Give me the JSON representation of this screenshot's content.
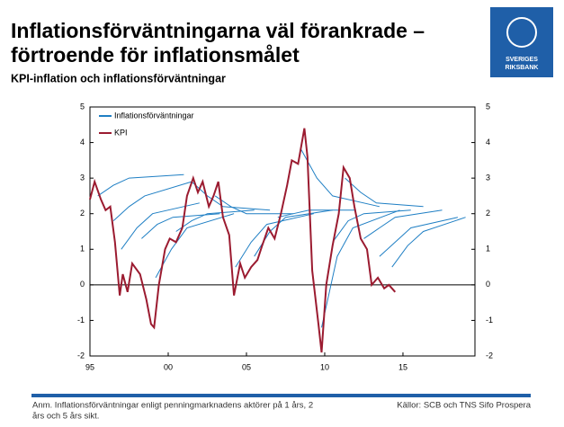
{
  "chart_data": {
    "type": "line",
    "title": "Inflationsförväntningarna väl förankrade –",
    "title_line2": "förtroende för inflationsmålet",
    "subtitle": "KPI-inflation och inflationsförväntningar",
    "logo_text": "SVERIGES RIKSBANK",
    "note": "Anm. Inflationsförväntningar enligt penningmarknadens aktörer på 1 års, 2",
    "note_line2": "års och 5 års sikt.",
    "source": "Källor: SCB och TNS Sifo Prospera",
    "xlim": [
      1995,
      2019.6
    ],
    "xticks": [
      {
        "value": 1995,
        "label": "95"
      },
      {
        "value": 2000,
        "label": "00"
      },
      {
        "value": 2005,
        "label": "05"
      },
      {
        "value": 2010,
        "label": "10"
      },
      {
        "value": 2015,
        "label": "15"
      }
    ],
    "ylim": [
      -2,
      5
    ],
    "yticks": [
      -2,
      -1,
      0,
      1,
      2,
      3,
      4,
      5
    ],
    "y2lim": [
      -2,
      5
    ],
    "y2ticks": [
      -2,
      -1,
      0,
      1,
      2,
      3,
      4,
      5
    ],
    "legend": "upper left",
    "series": [
      {
        "name": "Inflationsförväntningar",
        "color": "#1f7fc4",
        "x": [
          1995.5,
          1996.5,
          1997.5,
          2001.0,
          null,
          1996.5,
          1997.5,
          1998.5,
          2001.5,
          null,
          1997.0,
          1998.0,
          1999.0,
          2002.0,
          null,
          1998.3,
          1999.3,
          2000.3,
          2003.3,
          null,
          1999.2,
          2000.2,
          2001.2,
          2004.2,
          null,
          2000.5,
          2001.5,
          2002.5,
          2005.5,
          null,
          2001.5,
          2002.5,
          2003.5,
          2006.5,
          null,
          2003.0,
          2004.0,
          2005.0,
          2008.0,
          null,
          2004.3,
          2005.3,
          2006.3,
          2009.3,
          null,
          2005.5,
          2006.5,
          2007.5,
          2010.5,
          null,
          2007.0,
          2008.0,
          2009.0,
          2012.0,
          null,
          2008.5,
          2009.5,
          2010.5,
          2013.5,
          null,
          2009.8,
          2010.8,
          2011.8,
          2014.8,
          null,
          2010.5,
          2011.5,
          2012.5,
          2015.5,
          null,
          2011.3,
          2012.3,
          2013.3,
          2016.3,
          null,
          2012.5,
          2013.5,
          2014.5,
          2017.5,
          null,
          2013.5,
          2014.5,
          2015.5,
          2018.5,
          null,
          2014.3,
          2015.3,
          2016.3,
          2019.0
        ],
        "values": [
          2.5,
          2.8,
          3.0,
          3.1,
          null,
          1.8,
          2.2,
          2.5,
          2.9,
          null,
          1.0,
          1.6,
          2.0,
          2.3,
          null,
          1.3,
          1.7,
          1.9,
          2.0,
          null,
          0.2,
          1.0,
          1.6,
          2.0,
          null,
          1.5,
          1.8,
          2.0,
          2.1,
          null,
          2.9,
          2.5,
          2.2,
          2.1,
          null,
          2.5,
          2.2,
          2.0,
          2.0,
          null,
          0.5,
          1.2,
          1.7,
          2.0,
          null,
          0.8,
          1.5,
          1.9,
          2.1,
          null,
          1.9,
          2.0,
          2.1,
          2.1,
          null,
          3.8,
          3.0,
          2.5,
          2.2,
          null,
          -1.2,
          0.8,
          1.6,
          2.1,
          null,
          1.2,
          1.8,
          2.0,
          2.1,
          null,
          3.0,
          2.6,
          2.3,
          2.2,
          null,
          1.3,
          1.6,
          1.9,
          2.1,
          null,
          0.8,
          1.2,
          1.6,
          1.9,
          null,
          0.5,
          1.1,
          1.5,
          1.9
        ]
      },
      {
        "name": "KPI",
        "color": "#9b1b30",
        "x": [
          1995.0,
          1995.3,
          1995.7,
          1996.0,
          1996.3,
          1996.6,
          1996.9,
          1997.1,
          1997.4,
          1997.7,
          1998.2,
          1998.6,
          1998.9,
          1999.1,
          1999.4,
          1999.8,
          2000.1,
          2000.5,
          2000.9,
          2001.2,
          2001.6,
          2001.9,
          2002.2,
          2002.6,
          2002.9,
          2003.2,
          2003.5,
          2003.9,
          2004.2,
          2004.6,
          2004.9,
          2005.3,
          2005.7,
          2006.0,
          2006.4,
          2006.8,
          2007.2,
          2007.6,
          2007.9,
          2008.3,
          2008.7,
          2008.9,
          2009.2,
          2009.6,
          2009.8,
          2010.1,
          2010.5,
          2010.9,
          2011.2,
          2011.6,
          2011.9,
          2012.3,
          2012.7,
          2013.0,
          2013.4,
          2013.8,
          2014.1,
          2014.5
        ],
        "values": [
          2.4,
          2.9,
          2.4,
          2.1,
          2.2,
          1.2,
          -0.3,
          0.3,
          -0.2,
          0.6,
          0.3,
          -0.4,
          -1.1,
          -1.2,
          0.0,
          1.0,
          1.3,
          1.2,
          1.6,
          2.5,
          3.0,
          2.6,
          2.9,
          2.2,
          2.5,
          2.9,
          1.9,
          1.4,
          -0.3,
          0.6,
          0.2,
          0.5,
          0.7,
          1.1,
          1.6,
          1.3,
          2.0,
          2.8,
          3.5,
          3.4,
          4.4,
          3.6,
          0.4,
          -1.1,
          -1.9,
          0.0,
          1.1,
          2.0,
          3.3,
          3.0,
          2.2,
          1.3,
          1.0,
          0.0,
          0.2,
          -0.1,
          0.0,
          -0.2
        ]
      }
    ]
  }
}
